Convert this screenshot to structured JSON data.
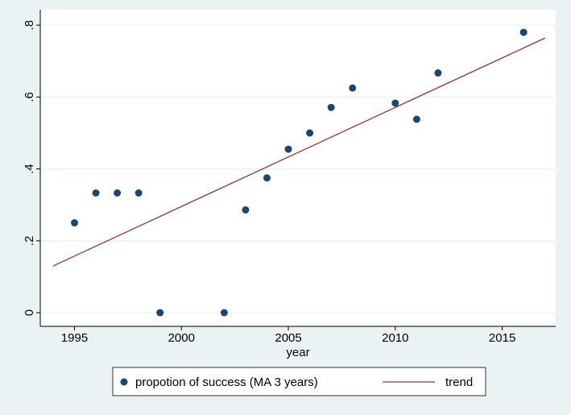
{
  "chart_data": {
    "type": "scatter",
    "x_label": "year",
    "xlim": [
      1993.4,
      2017.5
    ],
    "xticks": [
      1995,
      2000,
      2005,
      2010,
      2015
    ],
    "ylim": [
      -0.038,
      0.843
    ],
    "yticks": [
      0,
      {
        "value": 0.2,
        "label": ".2"
      },
      {
        "value": 0.4,
        "label": ".4"
      },
      {
        "value": 0.6,
        "label": ".6"
      },
      {
        "value": 0.8,
        "label": ".8"
      }
    ],
    "grid": true,
    "legend": "bottom",
    "series": [
      {
        "name": "propotion of success (MA 3 years)",
        "type": "scatter",
        "color": "#1a476f",
        "x": [
          1995,
          1996,
          1997,
          1998,
          1999,
          2002,
          2003,
          2004,
          2005,
          2006,
          2007,
          2008,
          2010,
          2011,
          2012,
          2016
        ],
        "values": [
          0.25,
          0.333,
          0.333,
          0.333,
          0,
          0,
          0.286,
          0.375,
          0.455,
          0.5,
          0.571,
          0.625,
          0.583,
          0.538,
          0.667,
          0.78
        ]
      },
      {
        "name": "trend",
        "type": "line",
        "color": "#90353b",
        "x": [
          1994,
          2017
        ],
        "values": [
          0.13,
          0.764
        ]
      }
    ]
  }
}
